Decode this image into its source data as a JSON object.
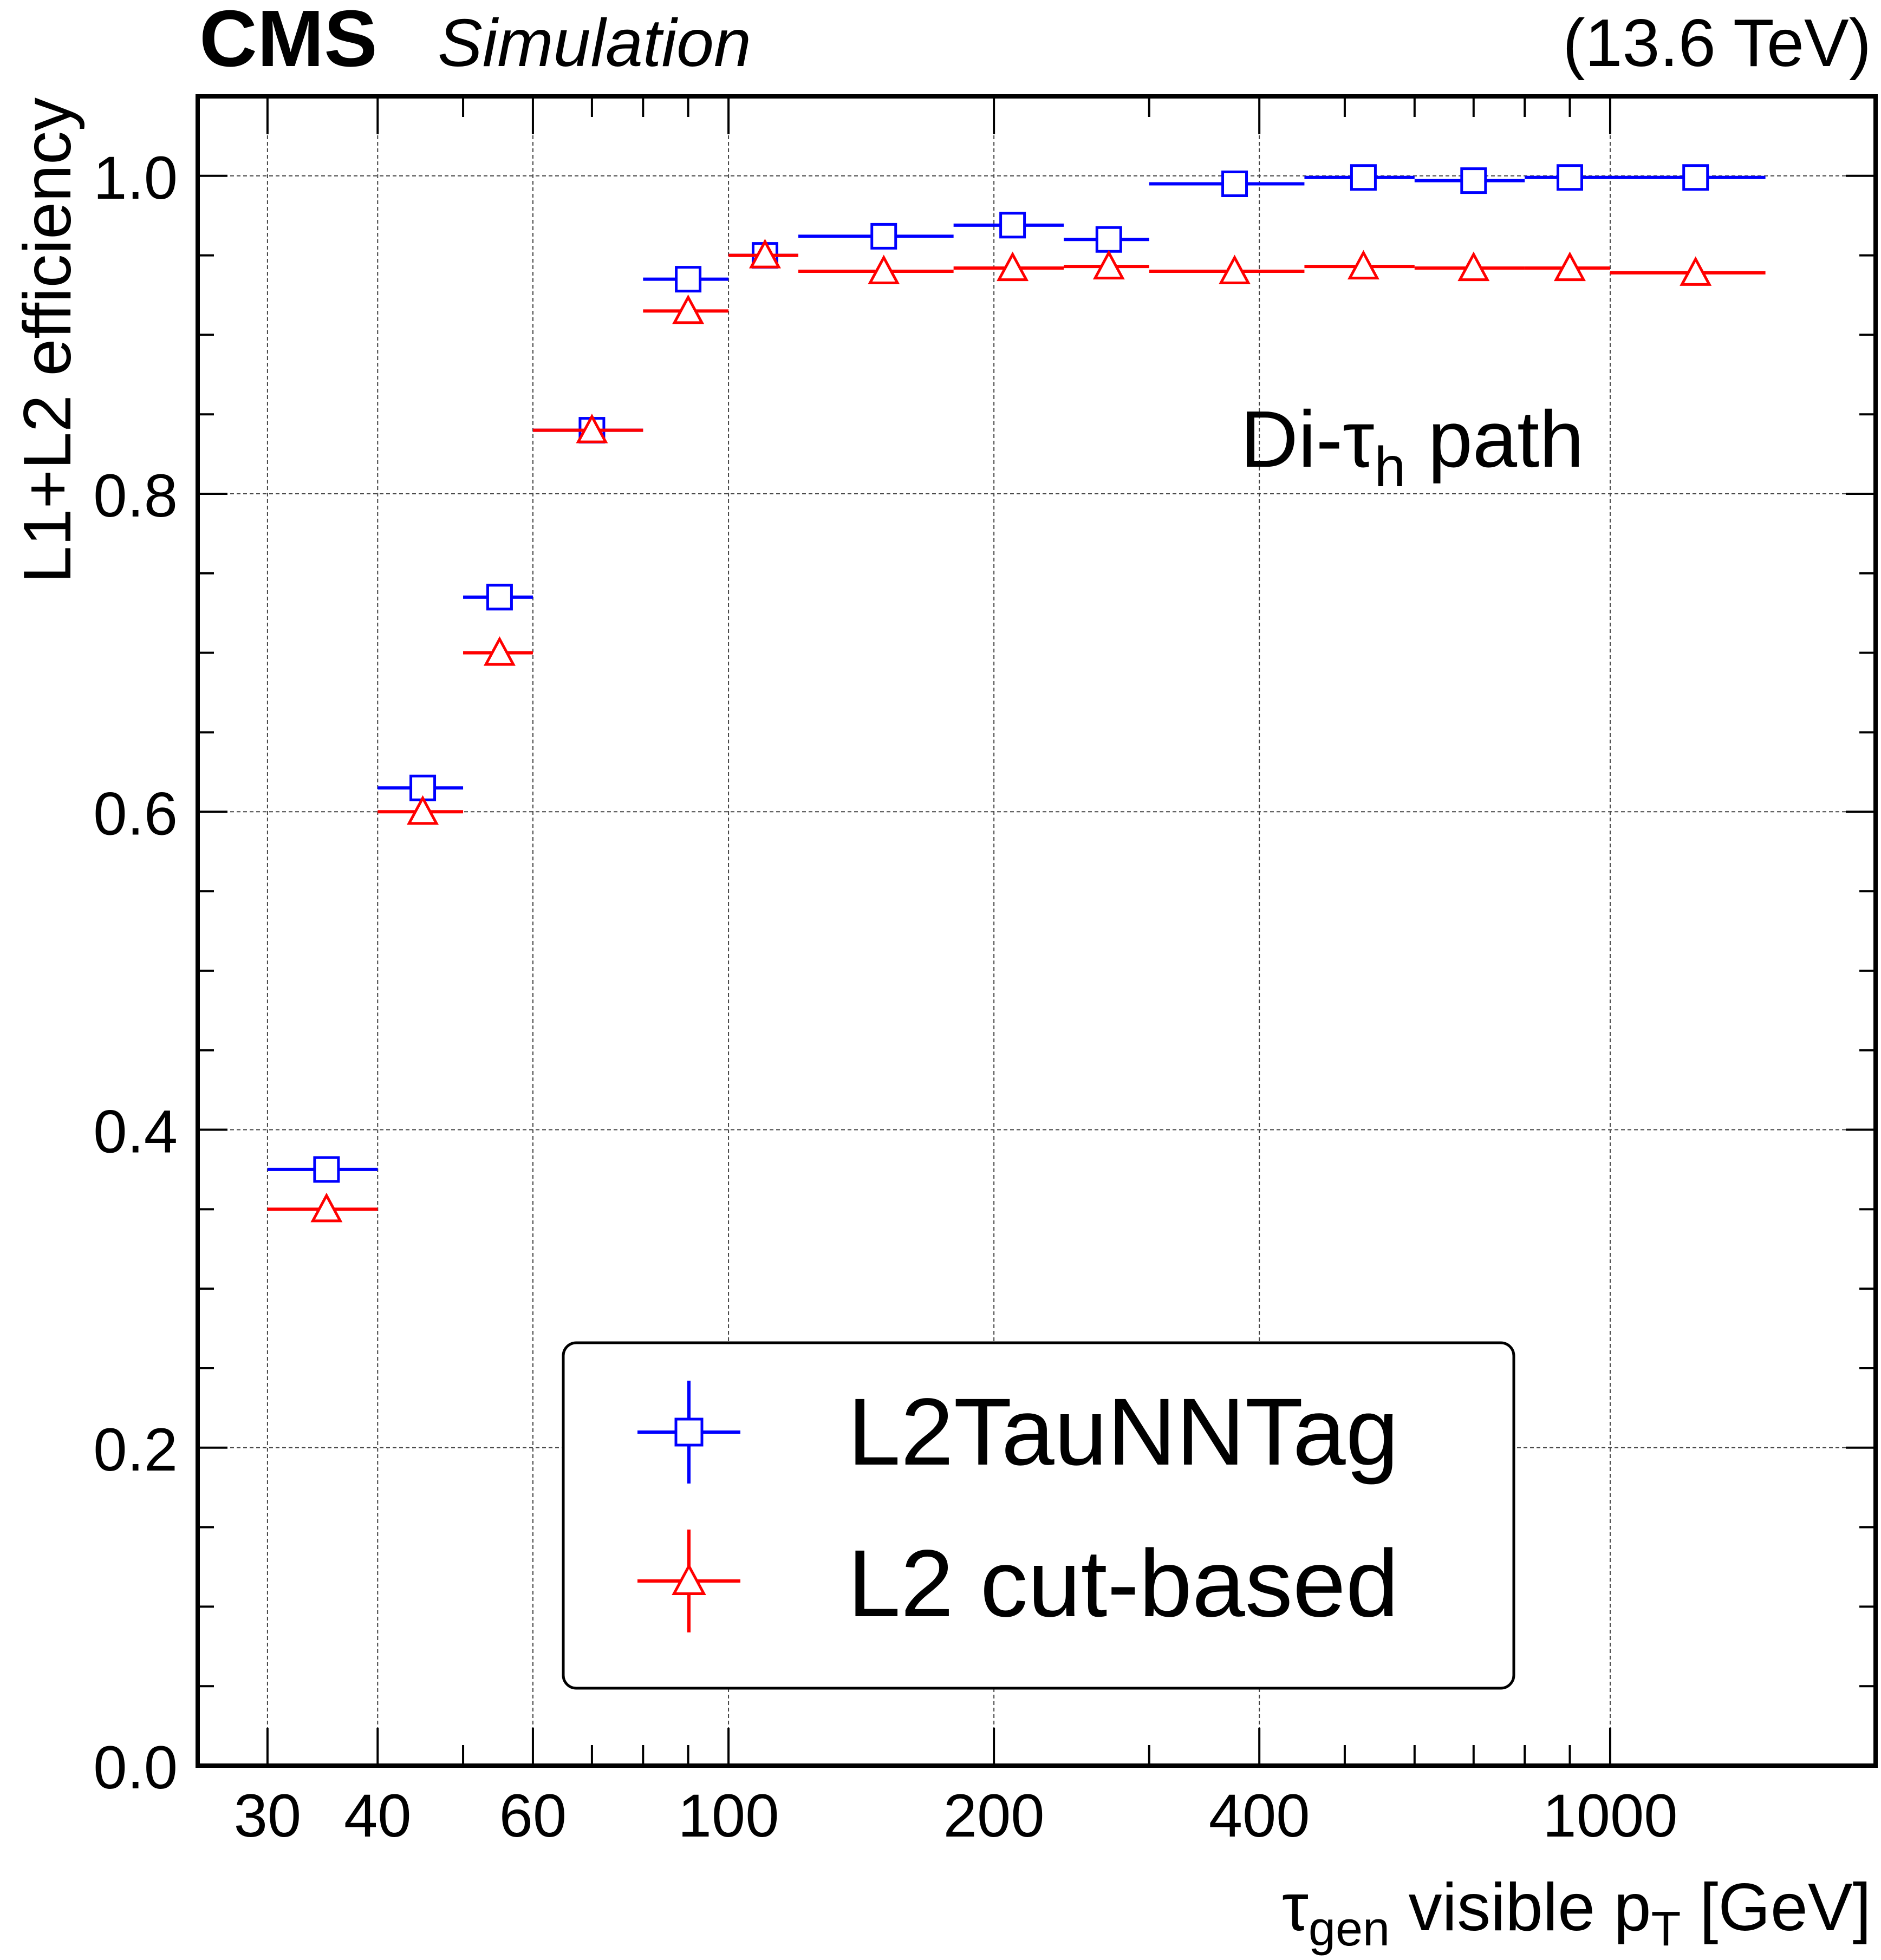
{
  "header": {
    "experiment": "CMS",
    "status": "Simulation",
    "energy": "(13.6 TeV)"
  },
  "chart_data": {
    "type": "scatter",
    "title": "",
    "xlabel": {
      "base": "τ",
      "sub": "gen",
      "mid": " visible p",
      "sub2": "T",
      "unit": " [GeV]"
    },
    "ylabel": "L1+L2 efficiency",
    "xscale": "log",
    "xlim": [
      25,
      2000
    ],
    "ylim": [
      0,
      1.05
    ],
    "x_ticks": [
      30,
      40,
      60,
      100,
      200,
      400,
      1000
    ],
    "x_tick_labels": [
      "30",
      "40",
      "60",
      "100",
      "200",
      "400",
      "1000"
    ],
    "y_ticks": [
      0.0,
      0.2,
      0.4,
      0.6,
      0.8,
      1.0
    ],
    "y_tick_labels": [
      "0.0",
      "0.2",
      "0.4",
      "0.6",
      "0.8",
      "1.0"
    ],
    "grid": true,
    "annotation": {
      "pre": "Di-τ",
      "sub": "h",
      "post": " path"
    },
    "bin_edges": [
      30,
      40,
      50,
      60,
      80,
      100,
      120,
      180,
      240,
      300,
      450,
      600,
      800,
      1000,
      1500
    ],
    "series": [
      {
        "name": "L2TauNNTag",
        "color": "#0000ff",
        "marker": "open-square",
        "x": [
          35,
          45,
          55,
          70,
          90,
          110,
          150,
          210,
          270,
          375,
          525,
          700,
          900,
          1250
        ],
        "values": [
          0.375,
          0.615,
          0.735,
          0.84,
          0.935,
          0.95,
          0.962,
          0.969,
          0.96,
          0.995,
          0.999,
          0.997,
          0.999,
          0.999
        ]
      },
      {
        "name": "L2 cut-based",
        "color": "#ff0000",
        "marker": "open-triangle",
        "x": [
          35,
          45,
          55,
          70,
          90,
          110,
          150,
          210,
          270,
          375,
          525,
          700,
          900,
          1250
        ],
        "values": [
          0.35,
          0.6,
          0.7,
          0.84,
          0.915,
          0.95,
          0.94,
          0.942,
          0.943,
          0.94,
          0.943,
          0.942,
          0.942,
          0.939
        ]
      }
    ],
    "legend": {
      "placement": "bottom-right"
    }
  }
}
